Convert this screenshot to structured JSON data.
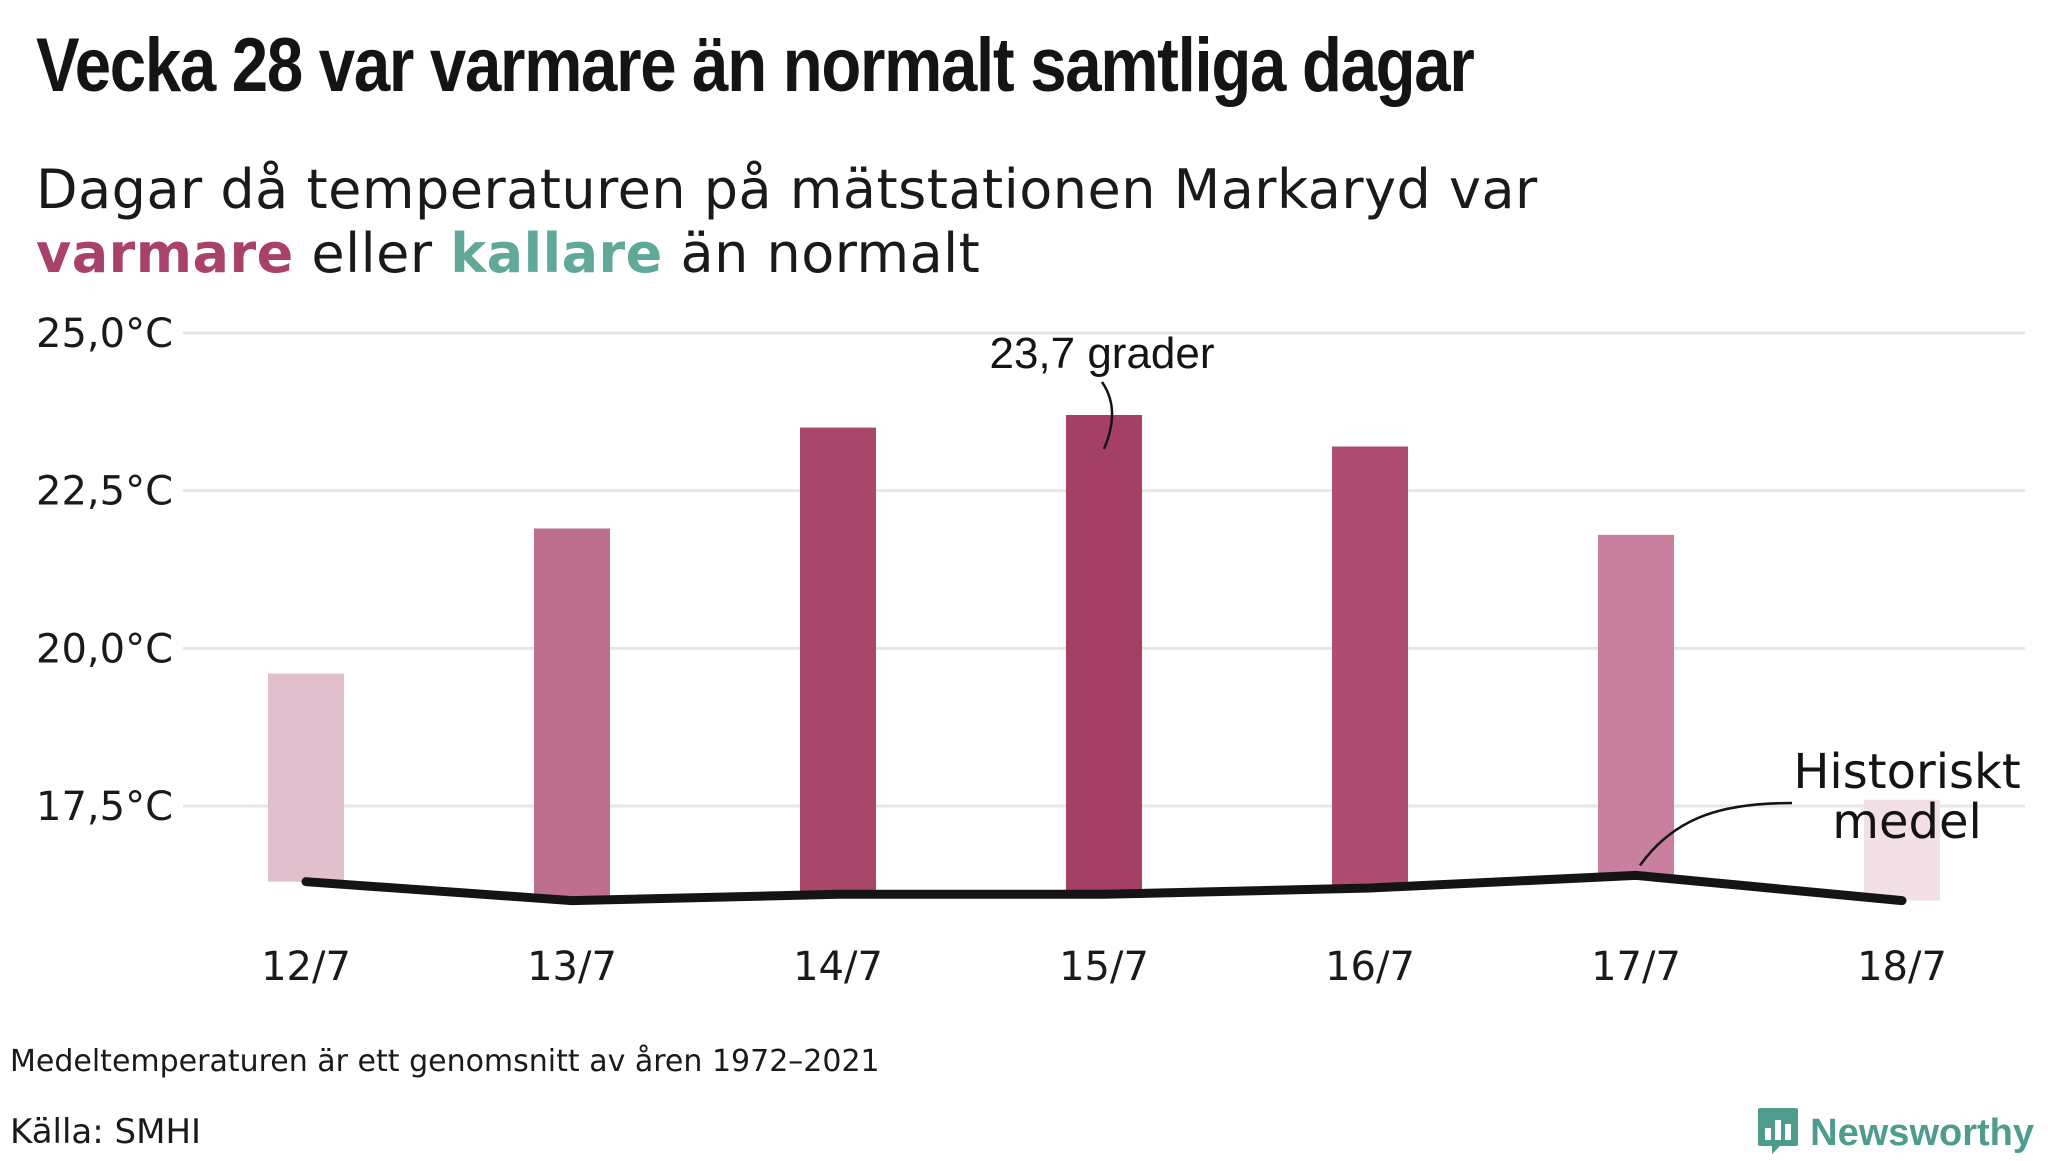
{
  "chart_data": {
    "type": "bar",
    "title": "Vecka 28 var varmare än normalt samtliga dagar",
    "subtitle": {
      "line1": "Dagar då temperaturen på mätstationen Markaryd var",
      "warm_word": "varmare",
      "middle": "eller",
      "cold_word": "kallare",
      "end": "än normalt"
    },
    "categories": [
      "12/7",
      "13/7",
      "14/7",
      "15/7",
      "16/7",
      "17/7",
      "18/7"
    ],
    "series": [
      {
        "values": [
          19.6,
          21.9,
          23.5,
          23.7,
          23.2,
          21.8,
          17.6
        ],
        "colors": [
          "#e2bfcc",
          "#bf6f8e",
          "#a9476b",
          "#a43f66",
          "#ac4d71",
          "#c9809e",
          "#f2e0e6"
        ]
      },
      {
        "name": "Historiskt medel",
        "type": "line",
        "values": [
          16.3,
          16.0,
          16.1,
          16.1,
          16.2,
          16.4,
          16.0
        ],
        "color": "#141414"
      }
    ],
    "yticks": [
      17.5,
      20.0,
      22.5,
      25.0
    ],
    "ytick_labels": [
      "17,5°C",
      "20,0°C",
      "22,5°C",
      "25,0°C"
    ],
    "ylim": [
      15.5,
      25.0
    ],
    "grid": true,
    "annotations": [
      {
        "text": "23,7 grader",
        "category": "15/7"
      },
      {
        "text_line1": "Historiskt",
        "text_line2": "medel",
        "category": "17/7"
      }
    ]
  },
  "footer": {
    "note": "Medeltemperaturen är ett genomsnitt av åren 1972–2021",
    "source": "Källa: SMHI",
    "brand": "Newsworthy"
  },
  "colors": {
    "warm": "#a8426b",
    "cold": "#5fa89a",
    "grid": "#e6e6e6",
    "brand": "#4e9c8e"
  }
}
